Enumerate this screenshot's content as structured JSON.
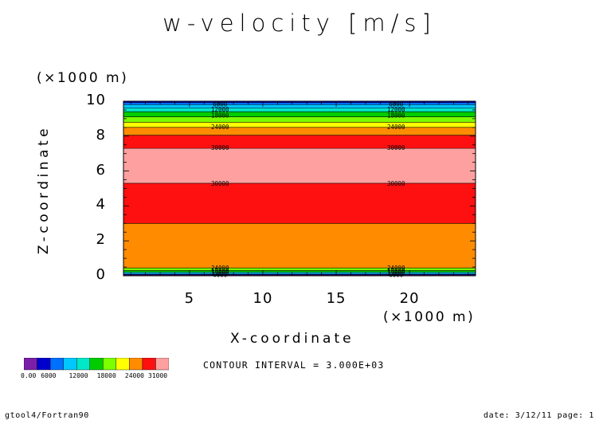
{
  "title": "w-velocity [m/s]",
  "axes": {
    "y_unit": "(×1000 m)",
    "x_unit": "(×1000 m)",
    "y_label": "Z-coordinate",
    "x_label": "X-coordinate"
  },
  "contour_interval_text": "CONTOUR INTERVAL = 3.000E+03",
  "footer": {
    "left": "gtool4/Fortran90",
    "right": "date: 3/12/11 page: 1"
  },
  "colors": {
    "levels": [
      "#7b1fa8",
      "#0000cd",
      "#0070ff",
      "#00c8ff",
      "#00e8c8",
      "#00cc00",
      "#7bff00",
      "#ffff00",
      "#ff8c00",
      "#ff1010",
      "#ffa0a0"
    ]
  },
  "colorbar": {
    "labels": [
      "0.00",
      "6000",
      "12000",
      "18000",
      "24000",
      "31000"
    ],
    "label_values": [
      0,
      6000,
      12000,
      18000,
      24000,
      31000
    ]
  },
  "chart_data": {
    "type": "heatmap",
    "title": "w-velocity [m/s]",
    "xlabel": "X-coordinate",
    "ylabel": "Z-coordinate",
    "xlim": [
      0.5,
      24.5
    ],
    "ylim": [
      0,
      10
    ],
    "x_ticks": [
      5,
      10,
      15,
      20
    ],
    "y_ticks": [
      0,
      2,
      4,
      6,
      8,
      10
    ],
    "contour_interval": 3000,
    "bands": [
      {
        "z0": 0.0,
        "z1": 0.05,
        "level": 0
      },
      {
        "z0": 0.05,
        "z1": 0.1,
        "level": 1
      },
      {
        "z0": 0.1,
        "z1": 0.2,
        "level": 3
      },
      {
        "z0": 0.2,
        "z1": 0.3,
        "level": 5
      },
      {
        "z0": 0.3,
        "z1": 0.45,
        "level": 6
      },
      {
        "z0": 0.45,
        "z1": 3.0,
        "level": 8
      },
      {
        "z0": 3.0,
        "z1": 5.3,
        "level": 9
      },
      {
        "z0": 5.3,
        "z1": 7.3,
        "level": 10
      },
      {
        "z0": 7.3,
        "z1": 8.05,
        "level": 9
      },
      {
        "z0": 8.05,
        "z1": 8.5,
        "level": 8
      },
      {
        "z0": 8.5,
        "z1": 8.8,
        "level": 7
      },
      {
        "z0": 8.8,
        "z1": 9.1,
        "level": 6
      },
      {
        "z0": 9.1,
        "z1": 9.4,
        "level": 5
      },
      {
        "z0": 9.4,
        "z1": 9.6,
        "level": 4
      },
      {
        "z0": 9.6,
        "z1": 9.8,
        "level": 3
      },
      {
        "z0": 9.8,
        "z1": 9.92,
        "level": 2
      },
      {
        "z0": 9.92,
        "z1": 10.0,
        "level": 1
      }
    ],
    "contour_labels": [
      {
        "z": 9.85,
        "text": "6000"
      },
      {
        "z": 9.55,
        "text": "12000"
      },
      {
        "z": 9.2,
        "text": "18000"
      },
      {
        "z": 8.55,
        "text": "24000"
      },
      {
        "z": 7.35,
        "text": "30000"
      },
      {
        "z": 5.3,
        "text": "30000"
      },
      {
        "z": 0.45,
        "text": "24000"
      },
      {
        "z": 0.3,
        "text": "18000"
      },
      {
        "z": 0.17,
        "text": "12000"
      },
      {
        "z": 0.07,
        "text": "6000"
      }
    ],
    "contour_label_x": [
      6,
      18
    ]
  }
}
